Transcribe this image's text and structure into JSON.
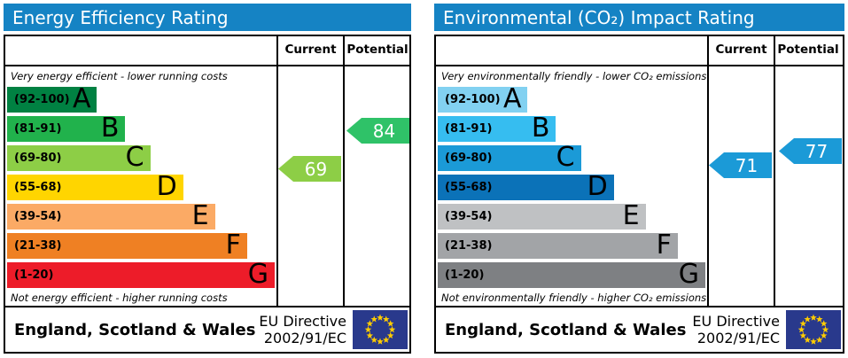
{
  "colors": {
    "header_blue": "#1583c4",
    "eu_flag_blue": "#29398c",
    "eu_flag_star": "#ffcc00"
  },
  "chart_data": [
    {
      "type": "bar",
      "title": "Energy Efficiency Rating",
      "categories": [
        "A (92-100)",
        "B (81-91)",
        "C (69-80)",
        "D (55-68)",
        "E (39-54)",
        "F (21-38)",
        "G (1-20)"
      ],
      "bar_lengths_pct": [
        33.6,
        44.2,
        53.5,
        65.8,
        77.7,
        89.7,
        100
      ],
      "band_colors": [
        "#008142",
        "#21b24c",
        "#8dce46",
        "#ffd500",
        "#fbaa65",
        "#ef8023",
        "#ed1c29"
      ],
      "series": [
        {
          "name": "Current",
          "values": [
            69
          ],
          "band": "C"
        },
        {
          "name": "Potential",
          "values": [
            84
          ],
          "band": "B"
        }
      ],
      "top_note": "Very energy efficient - lower running costs",
      "bottom_note": "Not energy efficient - higher running costs",
      "value_range": [
        1,
        100
      ]
    },
    {
      "type": "bar",
      "title": "Environmental (CO₂) Impact Rating",
      "categories": [
        "A (92-100)",
        "B (81-91)",
        "C (69-80)",
        "D (55-68)",
        "E (39-54)",
        "F (21-38)",
        "G (1-20)"
      ],
      "bar_lengths_pct": [
        33.6,
        44.2,
        53.5,
        65.8,
        77.7,
        89.7,
        100
      ],
      "band_colors": [
        "#82d1f1",
        "#36bdf0",
        "#1b9ad7",
        "#0b72b8",
        "#bfc1c3",
        "#a2a4a7",
        "#7e8083"
      ],
      "series": [
        {
          "name": "Current",
          "values": [
            71
          ],
          "band": "C"
        },
        {
          "name": "Potential",
          "values": [
            77
          ],
          "band": "C"
        }
      ],
      "top_note": "Very environmentally friendly - lower CO₂ emissions",
      "bottom_note": "Not environmentally friendly - higher CO₂ emissions",
      "value_range": [
        1,
        100
      ]
    }
  ],
  "panels": [
    {
      "title": "Energy Efficiency Rating",
      "title_bg": "#1583c4",
      "col_current": "Current",
      "col_potential": "Potential",
      "top_caption": "Very energy efficient - lower running costs",
      "bottom_caption": "Not energy efficient - higher running costs",
      "bands": [
        {
          "range": "(92-100)",
          "letter": "A",
          "color": "#008142",
          "width": "33.6%"
        },
        {
          "range": "(81-91)",
          "letter": "B",
          "color": "#21b24c",
          "width": "44.2%"
        },
        {
          "range": "(69-80)",
          "letter": "C",
          "color": "#8dce46",
          "width": "53.5%"
        },
        {
          "range": "(55-68)",
          "letter": "D",
          "color": "#ffd500",
          "width": "65.8%"
        },
        {
          "range": "(39-54)",
          "letter": "E",
          "color": "#fbaa65",
          "width": "77.7%"
        },
        {
          "range": "(21-38)",
          "letter": "F",
          "color": "#ef8023",
          "width": "89.7%"
        },
        {
          "range": "(1-20)",
          "letter": "G",
          "color": "#ed1c29",
          "width": "100%"
        }
      ],
      "current_arrow": {
        "value": "69",
        "color": "#8dce46"
      },
      "potential_arrow": {
        "value": "84",
        "color": "#2fc268"
      },
      "footer": {
        "region": "England, Scotland & Wales",
        "directive_line1": "EU Directive",
        "directive_line2": "2002/91/EC"
      }
    },
    {
      "title": "Environmental (CO₂) Impact Rating",
      "title_bg": "#1583c4",
      "col_current": "Current",
      "col_potential": "Potential",
      "top_caption": "Very environmentally friendly - lower CO₂ emissions",
      "bottom_caption": "Not environmentally friendly - higher CO₂ emissions",
      "bands": [
        {
          "range": "(92-100)",
          "letter": "A",
          "color": "#82d1f1",
          "width": "33.6%"
        },
        {
          "range": "(81-91)",
          "letter": "B",
          "color": "#36bdf0",
          "width": "44.2%"
        },
        {
          "range": "(69-80)",
          "letter": "C",
          "color": "#1b9ad7",
          "width": "53.5%"
        },
        {
          "range": "(55-68)",
          "letter": "D",
          "color": "#0b72b8",
          "width": "65.8%"
        },
        {
          "range": "(39-54)",
          "letter": "E",
          "color": "#bfc1c3",
          "width": "77.7%"
        },
        {
          "range": "(21-38)",
          "letter": "F",
          "color": "#a2a4a7",
          "width": "89.7%"
        },
        {
          "range": "(1-20)",
          "letter": "G",
          "color": "#7e8083",
          "width": "100%"
        }
      ],
      "current_arrow": {
        "value": "71",
        "color": "#1b9ad7"
      },
      "potential_arrow": {
        "value": "77",
        "color": "#1b9ad7"
      },
      "footer": {
        "region": "England, Scotland & Wales",
        "directive_line1": "EU Directive",
        "directive_line2": "2002/91/EC"
      }
    }
  ]
}
